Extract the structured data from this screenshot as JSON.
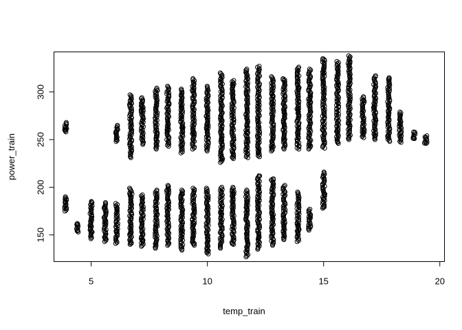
{
  "chart_data": {
    "type": "scatter",
    "title": "",
    "xlabel": "temp_train",
    "ylabel": "power_train",
    "xlim": [
      3.4,
      20.2
    ],
    "ylim": [
      122,
      342
    ],
    "xticks": [
      5,
      10,
      15,
      20
    ],
    "yticks": [
      150,
      200,
      250,
      300
    ],
    "grid": false,
    "marker": "open-circle",
    "color": "#000000",
    "clusters": [
      {
        "x": 3.9,
        "upper": [
          258,
          268
        ],
        "lower": [
          175,
          190
        ]
      },
      {
        "x": 4.4,
        "upper": null,
        "lower": [
          153,
          162
        ]
      },
      {
        "x": 5.0,
        "upper": null,
        "lower": [
          146,
          185
        ]
      },
      {
        "x": 5.6,
        "upper": null,
        "lower": [
          143,
          184
        ]
      },
      {
        "x": 6.1,
        "upper": [
          248,
          265
        ],
        "lower": [
          141,
          183
        ]
      },
      {
        "x": 6.7,
        "upper": [
          231,
          297
        ],
        "lower": [
          140,
          199
        ]
      },
      {
        "x": 7.2,
        "upper": [
          245,
          294
        ],
        "lower": [
          138,
          192
        ]
      },
      {
        "x": 7.8,
        "upper": [
          240,
          304
        ],
        "lower": [
          136,
          197
        ]
      },
      {
        "x": 8.3,
        "upper": [
          243,
          306
        ],
        "lower": [
          139,
          202
        ]
      },
      {
        "x": 8.9,
        "upper": [
          236,
          303
        ],
        "lower": [
          134,
          197
        ]
      },
      {
        "x": 9.4,
        "upper": [
          240,
          314
        ],
        "lower": [
          139,
          199
        ]
      },
      {
        "x": 10.0,
        "upper": [
          238,
          306
        ],
        "lower": [
          130,
          199
        ]
      },
      {
        "x": 10.6,
        "upper": [
          226,
          320
        ],
        "lower": [
          136,
          200
        ]
      },
      {
        "x": 11.1,
        "upper": [
          230,
          312
        ],
        "lower": [
          140,
          200
        ]
      },
      {
        "x": 11.7,
        "upper": [
          231,
          324
        ],
        "lower": [
          127,
          197
        ]
      },
      {
        "x": 12.2,
        "upper": [
          232,
          327
        ],
        "lower": [
          135,
          212
        ]
      },
      {
        "x": 12.8,
        "upper": [
          238,
          316
        ],
        "lower": [
          139,
          209
        ]
      },
      {
        "x": 13.3,
        "upper": [
          240,
          314
        ],
        "lower": [
          145,
          202
        ]
      },
      {
        "x": 13.9,
        "upper": [
          240,
          326
        ],
        "lower": [
          143,
          195
        ]
      },
      {
        "x": 14.4,
        "upper": [
          240,
          324
        ],
        "lower": [
          155,
          177
        ]
      },
      {
        "x": 15.0,
        "upper": [
          241,
          335
        ],
        "lower": [
          178,
          216
        ]
      },
      {
        "x": 15.6,
        "upper": [
          246,
          332
        ],
        "lower": null
      },
      {
        "x": 16.1,
        "upper": [
          250,
          338
        ],
        "lower": null
      },
      {
        "x": 16.7,
        "upper": [
          252,
          295
        ],
        "lower": null
      },
      {
        "x": 17.2,
        "upper": [
          250,
          317
        ],
        "lower": null
      },
      {
        "x": 17.8,
        "upper": [
          248,
          315
        ],
        "lower": null
      },
      {
        "x": 18.3,
        "upper": [
          247,
          279
        ],
        "lower": null
      },
      {
        "x": 18.9,
        "upper": [
          251,
          258
        ],
        "lower": null
      },
      {
        "x": 19.4,
        "upper": [
          246,
          254
        ],
        "lower": null
      }
    ]
  }
}
